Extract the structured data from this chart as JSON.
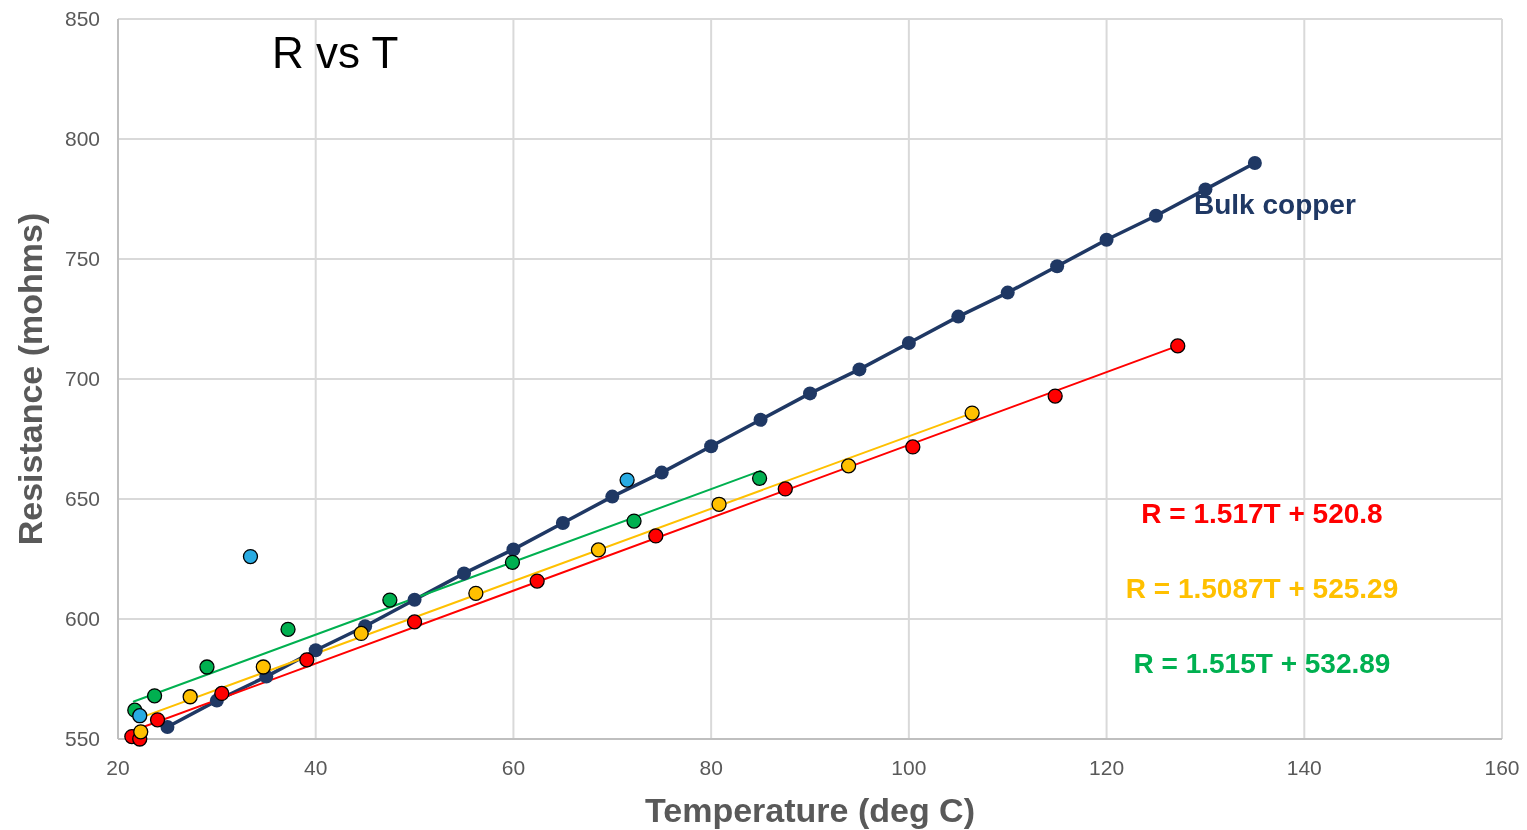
{
  "chart_data": {
    "type": "scatter",
    "title": "R vs T",
    "xlabel": "Temperature (deg C)",
    "ylabel": "Resistance (mohms)",
    "xlim": [
      20,
      160
    ],
    "xticks": [
      20,
      40,
      60,
      80,
      100,
      120,
      140,
      160
    ],
    "ylim": [
      550,
      850
    ],
    "yticks": [
      550,
      600,
      650,
      700,
      750,
      800,
      850
    ],
    "grid": true,
    "marker": "circle",
    "series": [
      {
        "type": "line",
        "name": "Bulk copper",
        "color": "#1f3864",
        "x": [
          25,
          30,
          35,
          40,
          45,
          50,
          55,
          60,
          65,
          70,
          75,
          80,
          85,
          90,
          95,
          100,
          105,
          110,
          115,
          120,
          125,
          130,
          135
        ],
        "values": [
          555,
          566,
          576,
          587,
          597,
          608,
          619,
          629,
          640,
          651,
          661,
          672,
          683,
          694,
          704,
          715,
          726,
          736,
          747,
          758,
          768,
          779,
          790
        ]
      },
      {
        "type": "line",
        "name": "R = 1.517T + 520.8",
        "color": "#ff0000",
        "marker": "none",
        "x": [
          21.3,
          127.2
        ],
        "values": [
          553.1,
          713.8
        ]
      },
      {
        "type": "line",
        "name": "R = 1.5087T + 525.29",
        "color": "#ffc000",
        "marker": "none",
        "x": [
          22.3,
          106.4
        ],
        "values": [
          558.9,
          685.8
        ]
      },
      {
        "type": "line",
        "name": "R = 1.515T + 532.89",
        "color": "#00b050",
        "marker": "none",
        "x": [
          21.6,
          85
        ],
        "values": [
          565.6,
          661.7
        ]
      },
      {
        "color": "#ff0000",
        "x": [
          21.4,
          22.2,
          24,
          30.5,
          39.1,
          50,
          62.4,
          74.4,
          87.5,
          100.4,
          114.8,
          127.2
        ],
        "values": [
          551,
          550,
          558,
          569,
          583,
          598.8,
          615.8,
          634.6,
          654.2,
          671.7,
          692.9,
          713.8
        ]
      },
      {
        "color": "#ffc000",
        "x": [
          22.3,
          27.3,
          34.7,
          44.6,
          56.2,
          68.6,
          80.8,
          93.9,
          106.4
        ],
        "values": [
          553,
          567.6,
          580,
          594,
          610.7,
          628.8,
          647.8,
          663.8,
          685.8
        ]
      },
      {
        "color": "#00b050",
        "x": [
          21.7,
          23.7,
          29,
          37.2,
          47.5,
          59.9,
          72.2,
          84.9
        ],
        "values": [
          562,
          568,
          580,
          595.7,
          607.9,
          623.6,
          640.8,
          658.6
        ]
      },
      {
        "color": "#29abe2",
        "x": [
          22.2,
          33.4,
          71.5
        ],
        "values": [
          559.7,
          626,
          657.9
        ]
      }
    ]
  }
}
